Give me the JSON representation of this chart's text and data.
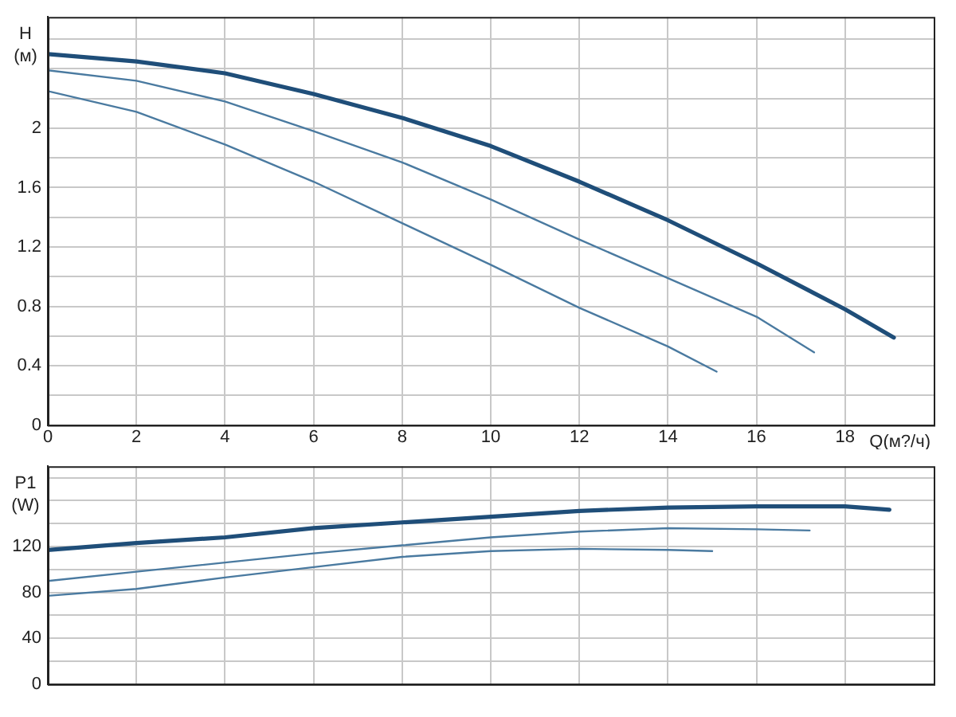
{
  "chart_data": [
    {
      "type": "line",
      "ylabel": "H (м)",
      "xlabel": "Q(м?/ч)",
      "xlim": [
        0,
        20
      ],
      "xticks": [
        0,
        2,
        4,
        6,
        8,
        10,
        12,
        14,
        16,
        18
      ],
      "ylim": [
        0,
        2.75
      ],
      "yticks": [
        0,
        {
          "value": 0.2,
          "label": null
        },
        0.4,
        {
          "value": 0.6,
          "label": null
        },
        0.8,
        {
          "value": 1.0,
          "label": null
        },
        1.2,
        {
          "value": 1.4,
          "label": null
        },
        1.6,
        {
          "value": 1.8,
          "label": null
        },
        2,
        {
          "value": 2.2,
          "label": null
        },
        {
          "value": 2.4,
          "label": null
        },
        {
          "value": 2.6,
          "label": null
        }
      ],
      "grid": true,
      "legend": false,
      "marker": "none",
      "line_style": "solid",
      "series": [
        {
          "color": "#1f4e79",
          "x": [
            0,
            2,
            4,
            6,
            8,
            10,
            12,
            14,
            16,
            18,
            19.1
          ],
          "values": [
            2.5,
            2.45,
            2.37,
            2.23,
            2.07,
            1.88,
            1.64,
            1.38,
            1.09,
            0.78,
            0.59
          ]
        },
        {
          "color": "#4a7aa0",
          "x": [
            0,
            2,
            4,
            6,
            8,
            10,
            12,
            14,
            16,
            17.3
          ],
          "values": [
            2.39,
            2.32,
            2.18,
            1.98,
            1.77,
            1.52,
            1.25,
            0.99,
            0.73,
            0.49
          ]
        },
        {
          "color": "#4a7aa0",
          "x": [
            0,
            2,
            4,
            6,
            8,
            10,
            12,
            14,
            15.1
          ],
          "values": [
            2.25,
            2.11,
            1.89,
            1.64,
            1.36,
            1.08,
            0.79,
            0.53,
            0.36
          ]
        }
      ]
    },
    {
      "type": "line",
      "ylabel": "P1 (W)",
      "xlim": [
        0,
        20
      ],
      "xticks": [
        0,
        2,
        4,
        6,
        8,
        10,
        12,
        14,
        16,
        18
      ],
      "ylim": [
        0,
        190
      ],
      "yticks": [
        0,
        {
          "value": 20,
          "label": null
        },
        40,
        {
          "value": 60,
          "label": null
        },
        80,
        {
          "value": 100,
          "label": null
        },
        120,
        {
          "value": 140,
          "label": null
        },
        {
          "value": 160,
          "label": null
        },
        {
          "value": 180,
          "label": null
        }
      ],
      "grid": true,
      "legend": false,
      "marker": "none",
      "line_style": "solid",
      "tick_labels": "y",
      "series": [
        {
          "color": "#1f4e79",
          "x": [
            0,
            2,
            4,
            6,
            8,
            10,
            12,
            14,
            16,
            18,
            19.0
          ],
          "values": [
            117,
            123,
            128,
            136,
            141,
            146,
            151,
            154,
            155,
            155,
            152
          ]
        },
        {
          "color": "#4a7aa0",
          "x": [
            0,
            2,
            4,
            6,
            8,
            10,
            12,
            14,
            16,
            17.2
          ],
          "values": [
            90,
            98,
            106,
            114,
            121,
            128,
            133,
            136,
            135,
            134
          ]
        },
        {
          "color": "#4a7aa0",
          "x": [
            0,
            2,
            4,
            6,
            8,
            10,
            12,
            14,
            15.0
          ],
          "values": [
            77,
            83,
            93,
            102,
            111,
            116,
            118,
            117,
            116
          ]
        }
      ]
    }
  ]
}
